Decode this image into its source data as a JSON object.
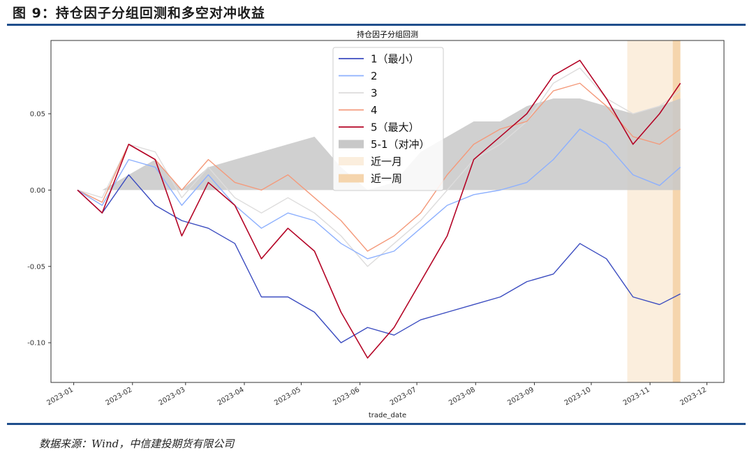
{
  "figure_caption": "图 9：持仓因子分组回测和多空对冲收益",
  "source_note": "数据来源：Wind，中信建投期货有限公司",
  "chart_data": {
    "type": "line",
    "title": "持仓因子分组回测",
    "xlabel": "trade_date",
    "ylabel": "",
    "x_ticks": [
      "2023-01",
      "2023-02",
      "2023-03",
      "2023-04",
      "2023-05",
      "2023-06",
      "2023-07",
      "2023-08",
      "2023-09",
      "2023-10",
      "2023-11",
      "2023-12"
    ],
    "y_ticks": [
      -0.1,
      -0.05,
      0.0,
      0.05
    ],
    "y_tick_labels": [
      "-0.10",
      "-0.05",
      "0.00",
      "0.05"
    ],
    "xlim": [
      "2022-12-20",
      "2023-12-10"
    ],
    "ylim": [
      -0.126,
      0.098
    ],
    "grid": false,
    "legend_position": "top-center",
    "colors": {
      "s1": "#3b4cc0",
      "s2": "#8db0fe",
      "s3": "#dddcdc",
      "s4": "#f49a7b",
      "s5": "#b40426",
      "hedge": "#c8c8c8",
      "month": "#fbeedd",
      "week": "#f5d5ad"
    },
    "shaded_periods": [
      {
        "name": "近一月",
        "start": "2023-10-20",
        "end": "2023-11-17"
      },
      {
        "name": "近一周",
        "start": "2023-11-13",
        "end": "2023-11-17"
      }
    ],
    "legend": [
      "1（最小）",
      "2",
      "3",
      "4",
      "5（最大）",
      "5-1（对冲）",
      "近一月",
      "近一周"
    ],
    "x": [
      "2023-01-03",
      "2023-01-16",
      "2023-01-30",
      "2023-02-13",
      "2023-02-27",
      "2023-03-13",
      "2023-03-27",
      "2023-04-10",
      "2023-04-24",
      "2023-05-08",
      "2023-05-22",
      "2023-06-05",
      "2023-06-19",
      "2023-07-03",
      "2023-07-17",
      "2023-07-31",
      "2023-08-14",
      "2023-08-28",
      "2023-09-11",
      "2023-09-25",
      "2023-10-09",
      "2023-10-23",
      "2023-11-06",
      "2023-11-17"
    ],
    "series": [
      {
        "name": "1（最小）",
        "values": [
          0.0,
          -0.015,
          0.01,
          -0.01,
          -0.02,
          -0.025,
          -0.035,
          -0.07,
          -0.07,
          -0.08,
          -0.1,
          -0.09,
          -0.095,
          -0.085,
          -0.08,
          -0.075,
          -0.07,
          -0.06,
          -0.055,
          -0.035,
          -0.045,
          -0.07,
          -0.075,
          -0.068
        ]
      },
      {
        "name": "2",
        "values": [
          0.0,
          -0.01,
          0.02,
          0.015,
          -0.01,
          0.01,
          -0.01,
          -0.025,
          -0.015,
          -0.02,
          -0.035,
          -0.045,
          -0.04,
          -0.025,
          -0.01,
          -0.003,
          0.0,
          0.005,
          0.02,
          0.04,
          0.03,
          0.01,
          0.003,
          0.015
        ]
      },
      {
        "name": "3",
        "values": [
          0.0,
          -0.005,
          0.03,
          0.025,
          -0.005,
          0.015,
          -0.005,
          -0.015,
          -0.005,
          -0.015,
          -0.03,
          -0.05,
          -0.035,
          -0.02,
          0.0,
          0.02,
          0.03,
          0.045,
          0.07,
          0.08,
          0.06,
          0.05,
          0.055,
          0.065
        ]
      },
      {
        "name": "4",
        "values": [
          0.0,
          -0.008,
          0.03,
          0.02,
          0.0,
          0.02,
          0.005,
          0.0,
          0.01,
          -0.005,
          -0.02,
          -0.04,
          -0.03,
          -0.015,
          0.01,
          0.03,
          0.04,
          0.045,
          0.065,
          0.07,
          0.055,
          0.035,
          0.03,
          0.04
        ]
      },
      {
        "name": "5（最大）",
        "values": [
          0.0,
          -0.015,
          0.03,
          0.02,
          -0.03,
          0.005,
          -0.01,
          -0.045,
          -0.025,
          -0.04,
          -0.08,
          -0.11,
          -0.09,
          -0.06,
          -0.03,
          0.02,
          0.035,
          0.05,
          0.075,
          0.085,
          0.06,
          0.03,
          0.05,
          0.07
        ]
      },
      {
        "name": "5-1（对冲）",
        "values": [
          0.0,
          0.0,
          0.01,
          0.02,
          0.0,
          0.015,
          0.02,
          0.025,
          0.03,
          0.035,
          0.015,
          0.0,
          0.005,
          0.025,
          0.035,
          0.045,
          0.045,
          0.055,
          0.06,
          0.06,
          0.055,
          0.05,
          0.055,
          0.06
        ]
      }
    ]
  }
}
